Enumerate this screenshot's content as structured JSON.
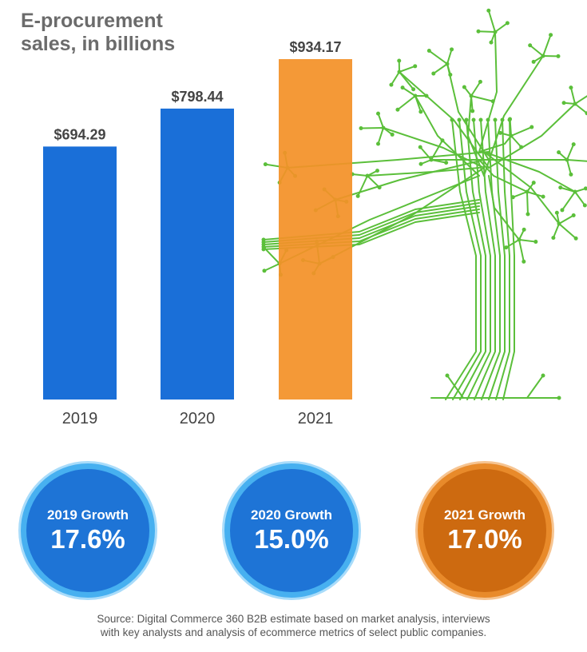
{
  "title_lines": [
    "E-procurement",
    "sales, in billions"
  ],
  "chart_data": {
    "type": "bar",
    "title": "E-procurement sales, in billions",
    "categories": [
      "2019",
      "2020",
      "2021"
    ],
    "values": [
      694.29,
      798.44,
      934.17
    ],
    "value_labels": [
      "$694.29",
      "$798.44",
      "$934.17"
    ],
    "colors": [
      "#1a6fd8",
      "#1a6fd8",
      "#f39128"
    ],
    "grid": false,
    "legend": "none"
  },
  "growth": [
    {
      "label": "2019 Growth",
      "value": "17.6%",
      "color": "blue"
    },
    {
      "label": "2020 Growth",
      "value": "15.0%",
      "color": "blue"
    },
    {
      "label": "2021 Growth",
      "value": "17.0%",
      "color": "orange"
    }
  ],
  "source": [
    "Source: Digital Commerce 360 B2B estimate based on market analysis, interviews",
    "with key analysts and analysis of ecommerce metrics of select public companies."
  ],
  "colors": {
    "title": "#6b6b6b",
    "bar_blue": "#1a6fd8",
    "bar_orange": "#f39128",
    "circuit_green": "#5bbf3a",
    "text": "#444444"
  }
}
